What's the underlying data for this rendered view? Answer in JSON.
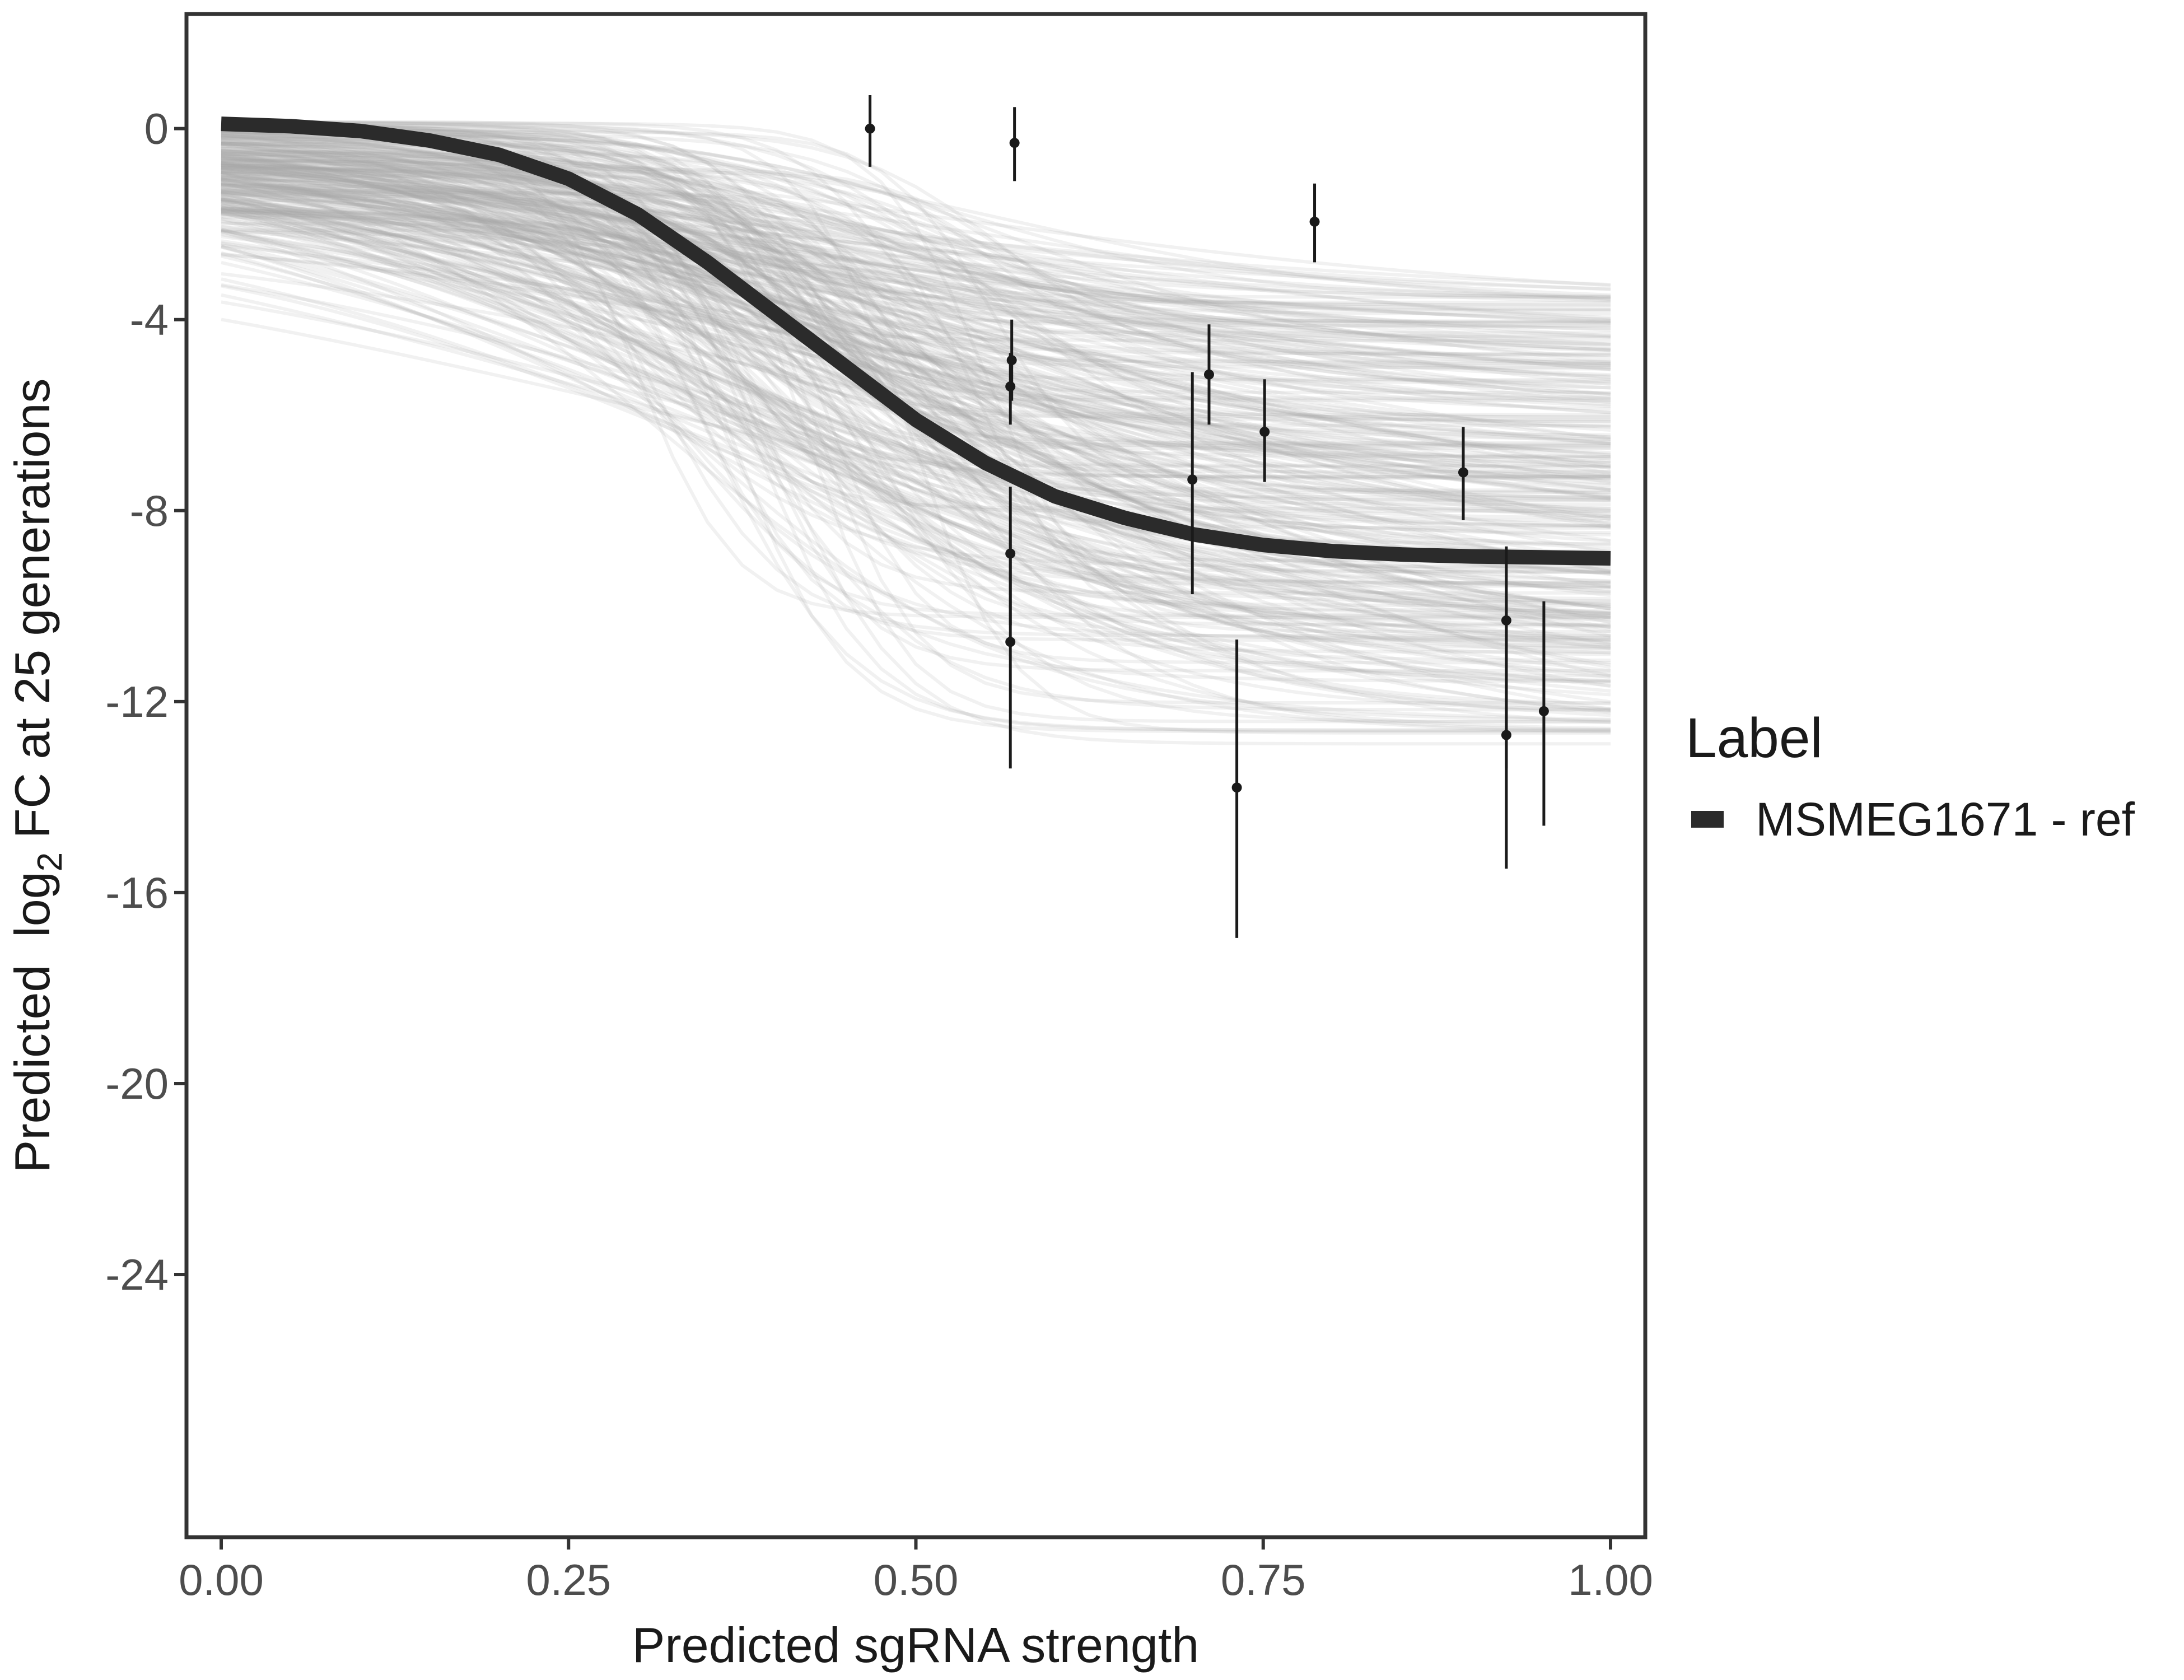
{
  "chart_data": {
    "type": "line",
    "xlabel": "Predicted sgRNA strength",
    "ylabel_parts": {
      "pre": "Predicted  log",
      "sub": "2",
      "post": " FC at 25 generations"
    },
    "xlim": [
      -0.025,
      1.025
    ],
    "ylim": [
      -29.5,
      2.4
    ],
    "x_ticks": [
      0.0,
      0.25,
      0.5,
      0.75,
      1.0
    ],
    "x_tick_labels": [
      "0.00",
      "0.25",
      "0.50",
      "0.75",
      "1.00"
    ],
    "y_ticks": [
      0,
      -4,
      -8,
      -12,
      -16,
      -20,
      -24
    ],
    "y_tick_labels": [
      "0",
      "-4",
      "-8",
      "-12",
      "-16",
      "-20",
      "-24"
    ],
    "grid": false,
    "legend": {
      "title": "Label",
      "position": "right",
      "entries": [
        "MSMEG1671 - ref"
      ]
    },
    "colors": {
      "fit_line": "#2b2b2b",
      "posterior_lines": "#a6a6a6",
      "points": "#1a1a1a",
      "frame": "#333333"
    },
    "fit_line": {
      "name": "MSMEG1671 - ref",
      "x": [
        0.0,
        0.05,
        0.1,
        0.15,
        0.2,
        0.25,
        0.3,
        0.35,
        0.4,
        0.45,
        0.5,
        0.55,
        0.6,
        0.65,
        0.7,
        0.75,
        0.8,
        0.85,
        0.9,
        0.95,
        1.0
      ],
      "y": [
        0.1,
        0.05,
        -0.05,
        -0.25,
        -0.55,
        -1.05,
        -1.8,
        -2.8,
        -3.9,
        -5.0,
        -6.1,
        -7.0,
        -7.7,
        -8.15,
        -8.5,
        -8.72,
        -8.85,
        -8.92,
        -8.96,
        -8.98,
        -9.0
      ]
    },
    "observations": [
      {
        "x": 0.467,
        "y": 0.0,
        "ymin": -0.8,
        "ymax": 0.7
      },
      {
        "x": 0.571,
        "y": -0.3,
        "ymin": -1.1,
        "ymax": 0.45
      },
      {
        "x": 0.787,
        "y": -1.95,
        "ymin": -2.8,
        "ymax": -1.15
      },
      {
        "x": 0.569,
        "y": -4.85,
        "ymin": -5.7,
        "ymax": -4.0
      },
      {
        "x": 0.568,
        "y": -5.4,
        "ymin": -6.2,
        "ymax": -4.7
      },
      {
        "x": 0.711,
        "y": -5.15,
        "ymin": -6.2,
        "ymax": -4.1
      },
      {
        "x": 0.751,
        "y": -6.35,
        "ymin": -7.4,
        "ymax": -5.25
      },
      {
        "x": 0.699,
        "y": -7.35,
        "ymin": -9.75,
        "ymax": -5.1
      },
      {
        "x": 0.894,
        "y": -7.2,
        "ymin": -8.2,
        "ymax": -6.25
      },
      {
        "x": 0.568,
        "y": -8.9,
        "ymin": -10.4,
        "ymax": -7.5
      },
      {
        "x": 0.568,
        "y": -10.75,
        "ymin": -13.4,
        "ymax": -8.4
      },
      {
        "x": 0.731,
        "y": -13.8,
        "ymin": -16.95,
        "ymax": -10.7
      },
      {
        "x": 0.925,
        "y": -10.3,
        "ymin": -13.4,
        "ymax": -8.75
      },
      {
        "x": 0.925,
        "y": -12.7,
        "ymin": -15.5,
        "ymax": -9.8
      },
      {
        "x": 0.952,
        "y": -12.2,
        "ymin": -14.6,
        "ymax": -9.9
      }
    ]
  }
}
